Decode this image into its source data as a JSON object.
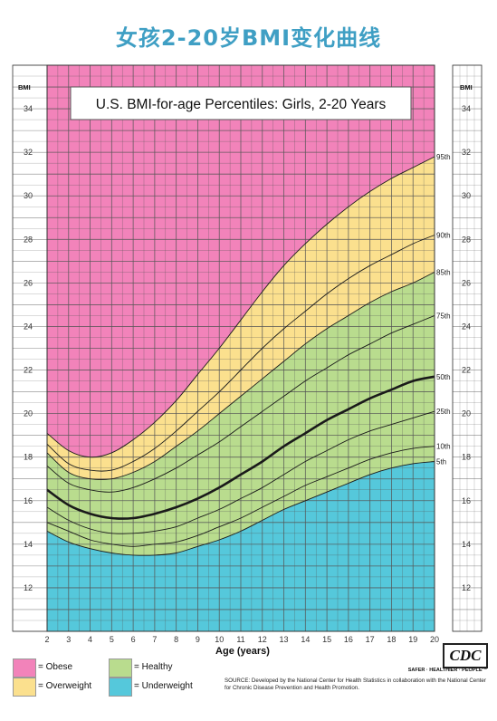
{
  "page_title": "女孩2-20岁BMI变化曲线",
  "cdc_logo": "CDC",
  "cdc_tagline": "SAFER · HEALTHIER · PEOPLE™",
  "source_text": "SOURCE: Developed by the National Center for Health Statistics in collaboration with the National Center for Chronic Disease Prevention and Health Promotion.",
  "legend": [
    {
      "label": "= Obese",
      "color": "#f283ba"
    },
    {
      "label": "= Overweight",
      "color": "#fbe08e"
    },
    {
      "label": "= Healthy",
      "color": "#b9dc8e"
    },
    {
      "label": "= Underweight",
      "color": "#55c8db"
    }
  ],
  "chart_data": {
    "type": "line",
    "title": "U.S. BMI-for-age Percentiles: Girls, 2-20 Years",
    "xlabel": "Age (years)",
    "ylabel": "BMI",
    "xlim": [
      2,
      20
    ],
    "ylim": [
      10,
      36
    ],
    "x_ticks": [
      2,
      3,
      4,
      5,
      6,
      7,
      8,
      9,
      10,
      11,
      12,
      13,
      14,
      15,
      16,
      17,
      18,
      19,
      20
    ],
    "y_ticks": [
      12,
      14,
      16,
      18,
      20,
      22,
      24,
      26,
      28,
      30,
      32,
      34
    ],
    "grid": true,
    "x": [
      2,
      3,
      4,
      5,
      6,
      7,
      8,
      9,
      10,
      11,
      12,
      13,
      14,
      15,
      16,
      17,
      18,
      19,
      20
    ],
    "series": [
      {
        "name": "95th",
        "values": [
          19.1,
          18.3,
          18.0,
          18.2,
          18.8,
          19.6,
          20.6,
          21.8,
          23.0,
          24.3,
          25.6,
          26.8,
          27.8,
          28.7,
          29.5,
          30.2,
          30.8,
          31.3,
          31.8
        ],
        "bold": false
      },
      {
        "name": "90th",
        "values": [
          18.6,
          17.7,
          17.4,
          17.4,
          17.8,
          18.4,
          19.2,
          20.1,
          21.0,
          22.0,
          23.0,
          23.9,
          24.7,
          25.5,
          26.2,
          26.8,
          27.3,
          27.8,
          28.2
        ],
        "bold": false
      },
      {
        "name": "85th",
        "values": [
          18.2,
          17.3,
          17.0,
          17.0,
          17.3,
          17.8,
          18.5,
          19.2,
          20.0,
          20.8,
          21.6,
          22.4,
          23.2,
          23.9,
          24.5,
          25.1,
          25.6,
          26.0,
          26.5
        ],
        "bold": false
      },
      {
        "name": "75th",
        "values": [
          17.6,
          16.8,
          16.5,
          16.4,
          16.6,
          17.0,
          17.5,
          18.1,
          18.7,
          19.4,
          20.1,
          20.8,
          21.5,
          22.1,
          22.7,
          23.2,
          23.7,
          24.1,
          24.5
        ],
        "bold": false
      },
      {
        "name": "50th",
        "values": [
          16.5,
          15.8,
          15.4,
          15.2,
          15.2,
          15.4,
          15.7,
          16.1,
          16.6,
          17.2,
          17.8,
          18.5,
          19.1,
          19.7,
          20.2,
          20.7,
          21.1,
          21.5,
          21.7
        ],
        "bold": true
      },
      {
        "name": "25th",
        "values": [
          15.7,
          15.1,
          14.7,
          14.5,
          14.5,
          14.6,
          14.8,
          15.2,
          15.6,
          16.1,
          16.6,
          17.2,
          17.8,
          18.3,
          18.8,
          19.2,
          19.5,
          19.8,
          20.1
        ],
        "bold": false
      },
      {
        "name": "10th",
        "values": [
          15.0,
          14.6,
          14.2,
          14.0,
          13.9,
          14.0,
          14.1,
          14.4,
          14.8,
          15.2,
          15.7,
          16.2,
          16.7,
          17.1,
          17.5,
          17.9,
          18.2,
          18.4,
          18.5
        ],
        "bold": false
      },
      {
        "name": "5th",
        "values": [
          14.6,
          14.1,
          13.8,
          13.6,
          13.5,
          13.5,
          13.6,
          13.9,
          14.2,
          14.6,
          15.1,
          15.6,
          16.0,
          16.4,
          16.8,
          17.2,
          17.5,
          17.7,
          17.8
        ],
        "bold": false
      }
    ],
    "bands": [
      {
        "name": "Obese",
        "from": "95th",
        "to": "top",
        "color": "#f283ba"
      },
      {
        "name": "Overweight",
        "from": "85th",
        "to": "95th",
        "color": "#fbe08e"
      },
      {
        "name": "Healthy",
        "from": "5th",
        "to": "85th",
        "color": "#b9dc8e"
      },
      {
        "name": "Underweight",
        "from": "bottom",
        "to": "5th",
        "color": "#55c8db"
      }
    ]
  }
}
